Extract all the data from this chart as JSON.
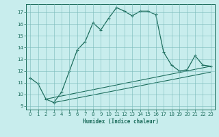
{
  "xlabel": "Humidex (Indice chaleur)",
  "bg_color": "#c8eded",
  "grid_color": "#7ababa",
  "line_color": "#1a6b5a",
  "xlim": [
    -0.5,
    23.5
  ],
  "ylim": [
    8.7,
    17.7
  ],
  "yticks": [
    9,
    10,
    11,
    12,
    13,
    14,
    15,
    16,
    17
  ],
  "xticks": [
    0,
    1,
    2,
    3,
    4,
    5,
    6,
    7,
    8,
    9,
    10,
    11,
    12,
    13,
    14,
    15,
    16,
    17,
    18,
    19,
    20,
    21,
    22,
    23
  ],
  "curve_x": [
    0,
    1,
    2,
    3,
    4,
    5,
    6,
    7,
    8,
    9,
    10,
    11,
    12,
    13,
    14,
    15,
    16,
    17,
    18,
    19,
    20,
    21,
    22,
    23
  ],
  "curve_y": [
    11.4,
    10.9,
    9.6,
    9.3,
    10.2,
    12.0,
    13.8,
    14.5,
    16.1,
    15.5,
    16.5,
    17.4,
    17.1,
    16.7,
    17.1,
    17.1,
    16.8,
    13.6,
    12.5,
    12.0,
    12.1,
    13.3,
    12.5,
    12.4
  ],
  "line2_x": [
    2,
    23
  ],
  "line2_y": [
    9.6,
    12.4
  ],
  "line3_x": [
    3,
    23
  ],
  "line3_y": [
    9.3,
    11.9
  ]
}
